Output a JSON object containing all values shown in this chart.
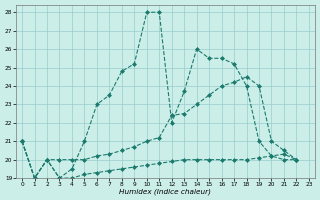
{
  "xlabel": "Humidex (Indice chaleur)",
  "background_color": "#cceee8",
  "grid_color": "#99cccc",
  "line_color": "#1a7a6e",
  "xlim": [
    -0.5,
    23.5
  ],
  "ylim": [
    19,
    28.4
  ],
  "xticks": [
    0,
    1,
    2,
    3,
    4,
    5,
    6,
    7,
    8,
    9,
    10,
    11,
    12,
    13,
    14,
    15,
    16,
    17,
    18,
    19,
    20,
    21,
    22,
    23
  ],
  "yticks": [
    19,
    20,
    21,
    22,
    23,
    24,
    25,
    26,
    27,
    28
  ],
  "series": [
    {
      "x": [
        0,
        1,
        2,
        3,
        4,
        5,
        6,
        7,
        8,
        9,
        10,
        11,
        12,
        13,
        14,
        15,
        16,
        17,
        18,
        19,
        20,
        21,
        22
      ],
      "y": [
        21,
        19,
        20,
        19,
        19.5,
        21,
        23,
        23.5,
        24.8,
        25.2,
        28,
        28,
        22,
        23.7,
        26,
        25.5,
        25.5,
        25.2,
        24,
        21,
        20.2,
        20,
        20
      ]
    },
    {
      "x": [
        0,
        1,
        2,
        3,
        4,
        5,
        6,
        7,
        8,
        9,
        10,
        11,
        12,
        13,
        14,
        15,
        16,
        17,
        18,
        19,
        20,
        21,
        22
      ],
      "y": [
        21,
        19,
        20,
        20,
        20,
        20,
        20.2,
        20.3,
        20.5,
        20.7,
        21,
        21.2,
        22.4,
        22.5,
        23,
        23.5,
        24,
        24.2,
        24.5,
        24,
        21,
        20.5,
        20
      ]
    },
    {
      "x": [
        0,
        1,
        2,
        3,
        4,
        5,
        6,
        7,
        8,
        9,
        10,
        11,
        12,
        13,
        14,
        15,
        16,
        17,
        18,
        19,
        20,
        21,
        22
      ],
      "y": [
        21,
        19,
        20,
        19,
        19,
        19.2,
        19.3,
        19.4,
        19.5,
        19.6,
        19.7,
        19.8,
        19.9,
        20,
        20,
        20,
        20,
        20,
        20,
        20.1,
        20.2,
        20.3,
        20
      ]
    }
  ]
}
